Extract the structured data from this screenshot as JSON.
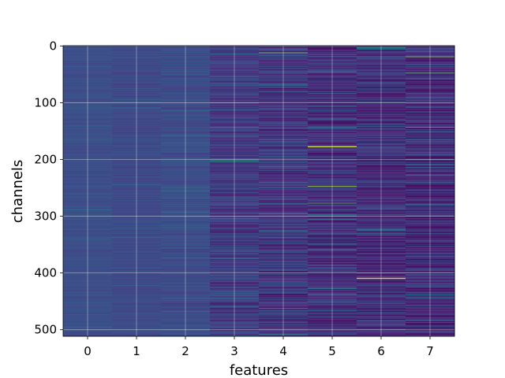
{
  "chart_data": {
    "type": "heatmap",
    "title": "",
    "xlabel": "features",
    "ylabel": "channels",
    "x_ticks": [
      "0",
      "1",
      "2",
      "3",
      "4",
      "5",
      "6",
      "7"
    ],
    "y_ticks": [
      "0",
      "100",
      "200",
      "300",
      "400",
      "500"
    ],
    "n_features": 8,
    "n_channels": 512,
    "xlim": [
      -0.5,
      7.5
    ],
    "ylim": [
      511.5,
      -0.5
    ],
    "grid": true,
    "colormap": "viridis",
    "column_base_level": [
      0.3,
      0.28,
      0.29,
      0.22,
      0.2,
      0.18,
      0.17,
      0.16
    ],
    "column_variation": [
      0.08,
      0.09,
      0.12,
      0.22,
      0.26,
      0.28,
      0.28,
      0.3
    ],
    "highlights": [
      {
        "feature": 4,
        "channel": 12,
        "value": 0.85
      },
      {
        "feature": 5,
        "channel": 177,
        "value": 0.95
      },
      {
        "feature": 5,
        "channel": 178,
        "value": 0.95
      },
      {
        "feature": 5,
        "channel": 247,
        "value": 0.9
      },
      {
        "feature": 5,
        "channel": 277,
        "value": 0.8
      },
      {
        "feature": 6,
        "channel": 409,
        "value": 0.95
      },
      {
        "feature": 6,
        "channel": 410,
        "value": 0.9
      },
      {
        "feature": 7,
        "channel": 19,
        "value": 0.85
      },
      {
        "feature": 7,
        "channel": 48,
        "value": 0.8
      },
      {
        "feature": 7,
        "channel": 143,
        "value": 0.8
      },
      {
        "feature": 3,
        "channel": 203,
        "value": 0.7
      },
      {
        "feature": 4,
        "channel": 296,
        "value": 0.7
      }
    ]
  }
}
